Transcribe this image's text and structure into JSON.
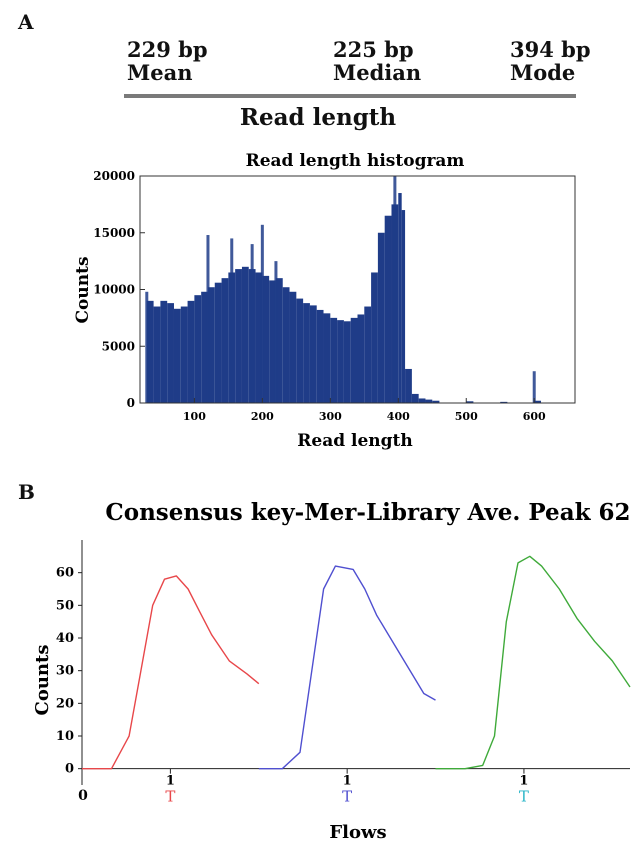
{
  "panel_a_label": "A",
  "panel_b_label": "B",
  "stats": [
    {
      "value": "229 bp",
      "label": "Mean"
    },
    {
      "value": "225 bp",
      "label": "Median"
    },
    {
      "value": "394 bp",
      "label": "Mode"
    }
  ],
  "section_title": "Read length",
  "colors": {
    "bars": "#1f3c88",
    "red": "#e8474a",
    "blue": "#4f4fd0",
    "green": "#3faa3a",
    "key_cyan": "#2ab6c8",
    "axis": "#333333"
  },
  "chart_data": [
    {
      "type": "bar",
      "title": "Read length histogram",
      "xlabel": "Read length",
      "ylabel": "Counts",
      "xlim": [
        20,
        660
      ],
      "ylim": [
        0,
        20000
      ],
      "xticks": [
        100,
        200,
        300,
        400,
        500,
        600
      ],
      "yticks": [
        0,
        5000,
        10000,
        15000,
        20000
      ],
      "grid": false,
      "x": [
        30,
        40,
        50,
        60,
        70,
        80,
        90,
        100,
        110,
        120,
        130,
        140,
        150,
        160,
        170,
        180,
        190,
        200,
        210,
        220,
        230,
        240,
        250,
        260,
        270,
        280,
        290,
        300,
        310,
        320,
        330,
        340,
        350,
        360,
        370,
        380,
        390,
        400,
        405,
        410,
        420,
        430,
        440,
        450,
        500,
        550,
        600
      ],
      "values": [
        9000,
        8500,
        9000,
        8800,
        8300,
        8500,
        9000,
        9500,
        9800,
        10200,
        10600,
        11000,
        11500,
        11800,
        12000,
        11800,
        11500,
        11200,
        10800,
        11000,
        10200,
        9800,
        9200,
        8800,
        8600,
        8200,
        7900,
        7500,
        7300,
        7200,
        7500,
        7800,
        8500,
        11500,
        15000,
        16500,
        17500,
        18500,
        17000,
        3000,
        800,
        400,
        300,
        200,
        150,
        100,
        200
      ],
      "spikes": [
        {
          "x": 30,
          "value": 9800
        },
        {
          "x": 120,
          "value": 14800
        },
        {
          "x": 155,
          "value": 14500
        },
        {
          "x": 185,
          "value": 14000
        },
        {
          "x": 200,
          "value": 15700
        },
        {
          "x": 220,
          "value": 12500
        },
        {
          "x": 395,
          "value": 20000
        },
        {
          "x": 600,
          "value": 2800
        }
      ]
    },
    {
      "type": "line",
      "title": "Consensus key-Mer-Library Ave. Peak 62",
      "xlabel": "Flows",
      "ylabel": "Counts",
      "ylim": [
        -5,
        70
      ],
      "yticks": [
        0,
        10,
        20,
        30,
        40,
        50,
        60
      ],
      "grid": false,
      "x_tick_labels": [
        "1",
        "1",
        "1"
      ],
      "key_bases": [
        "T",
        "T",
        "T"
      ],
      "x_origin_label": "0",
      "series": [
        {
          "color": "#e8474a",
          "x": [
            0,
            0.2,
            0.5,
            0.8,
            1.0,
            1.2,
            1.4,
            1.6,
            1.8,
            2.0,
            2.2,
            2.5,
            2.8,
            3.0
          ],
          "values": [
            0,
            0,
            0,
            10,
            30,
            50,
            58,
            59,
            55,
            48,
            41,
            33,
            29,
            26
          ]
        },
        {
          "color": "#4f4fd0",
          "x": [
            3.0,
            3.4,
            3.7,
            3.9,
            4.1,
            4.3,
            4.6,
            4.8,
            5.0,
            5.3,
            5.6,
            5.8,
            6.0
          ],
          "values": [
            0,
            0,
            5,
            30,
            55,
            62,
            61,
            55,
            47,
            38,
            29,
            23,
            21
          ]
        },
        {
          "color": "#3faa3a",
          "x": [
            6.0,
            6.5,
            6.8,
            7.0,
            7.2,
            7.4,
            7.6,
            7.8,
            8.1,
            8.4,
            8.7,
            9.0,
            9.3
          ],
          "values": [
            0,
            0,
            1,
            10,
            45,
            63,
            65,
            62,
            55,
            46,
            39,
            33,
            25
          ]
        }
      ]
    }
  ]
}
